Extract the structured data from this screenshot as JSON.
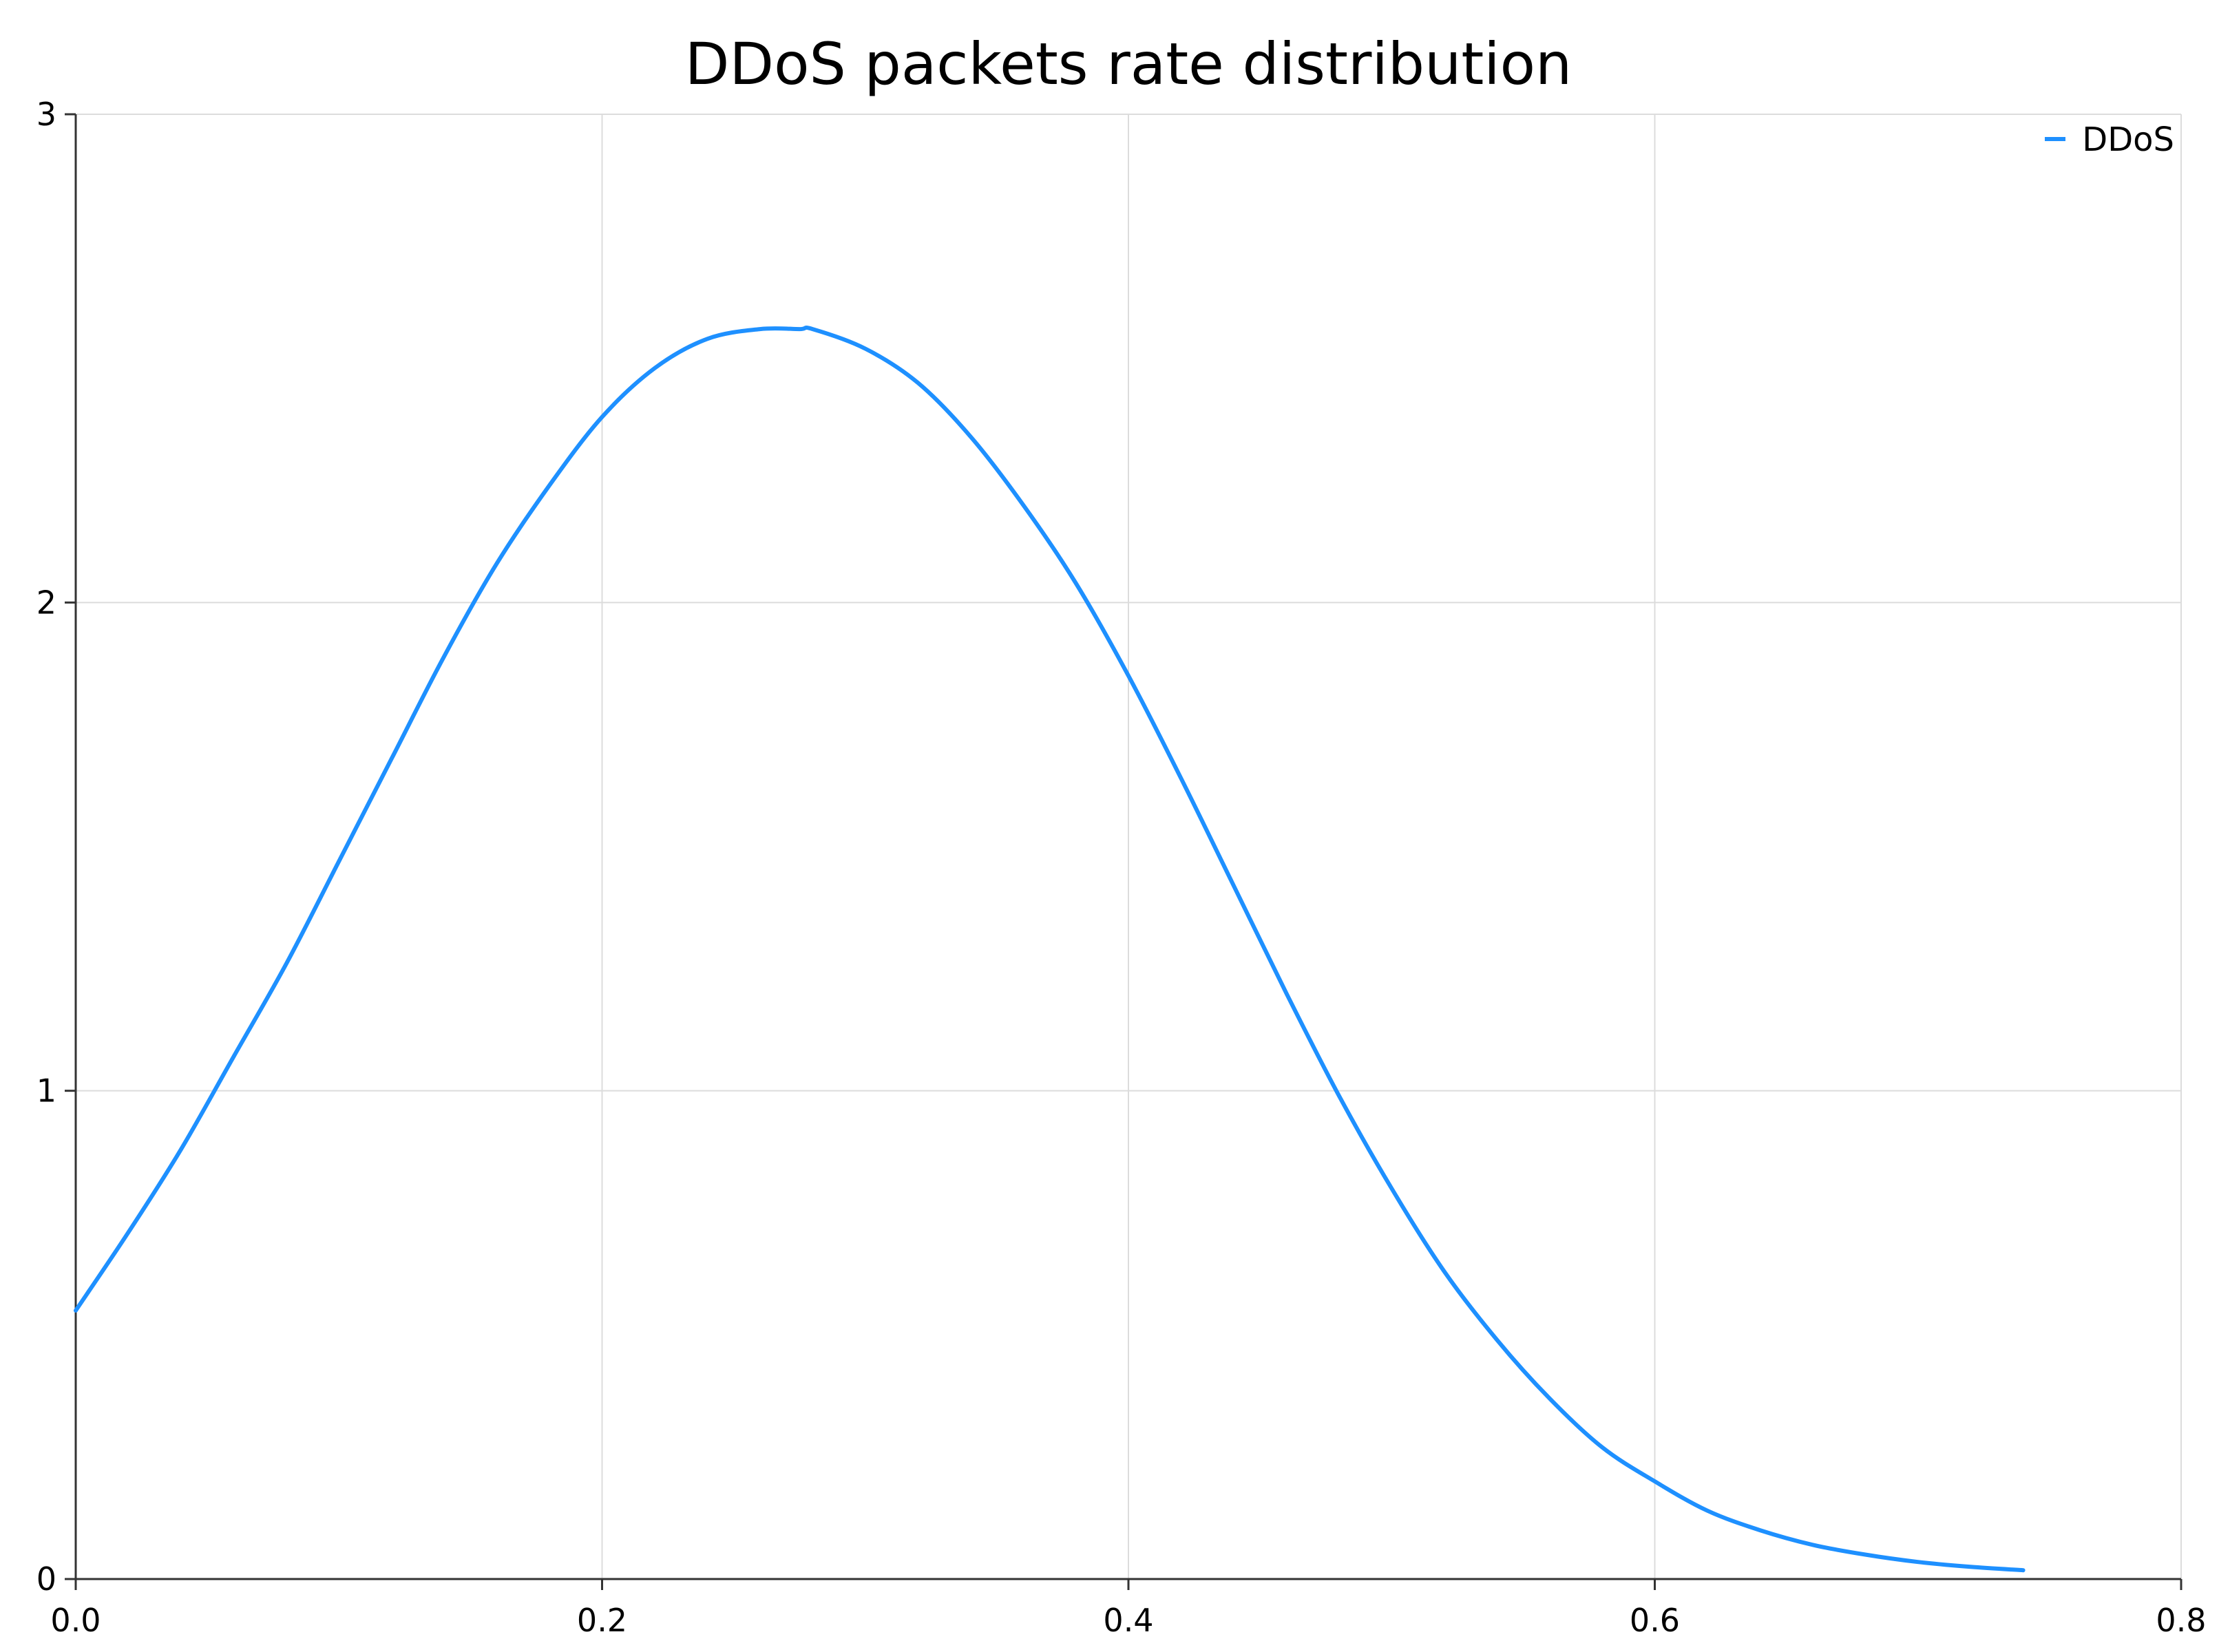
{
  "chart_data": {
    "type": "line",
    "title": "DDoS packets rate distribution",
    "xlabel": "",
    "ylabel": "",
    "xlim": [
      0,
      0.8
    ],
    "ylim": [
      0,
      3
    ],
    "x_ticks": [
      "0.0",
      "0.2",
      "0.4",
      "0.6",
      "0.8"
    ],
    "y_ticks": [
      "0",
      "1",
      "2",
      "3"
    ],
    "grid": true,
    "legend_position": "top-right",
    "series": [
      {
        "name": "DDoS",
        "color": "#1e90ff",
        "x": [
          0.0,
          0.02,
          0.04,
          0.06,
          0.08,
          0.1,
          0.12,
          0.14,
          0.16,
          0.18,
          0.2,
          0.22,
          0.24,
          0.26,
          0.275,
          0.28,
          0.3,
          0.32,
          0.34,
          0.36,
          0.38,
          0.4,
          0.42,
          0.44,
          0.46,
          0.48,
          0.5,
          0.52,
          0.54,
          0.56,
          0.58,
          0.6,
          0.62,
          0.64,
          0.66,
          0.68,
          0.7,
          0.72,
          0.74
        ],
        "y": [
          0.55,
          0.71,
          0.88,
          1.07,
          1.26,
          1.47,
          1.68,
          1.89,
          2.08,
          2.24,
          2.38,
          2.48,
          2.54,
          2.56,
          2.56,
          2.56,
          2.52,
          2.45,
          2.34,
          2.2,
          2.04,
          1.85,
          1.64,
          1.42,
          1.2,
          0.99,
          0.8,
          0.63,
          0.49,
          0.37,
          0.27,
          0.2,
          0.14,
          0.1,
          0.07,
          0.05,
          0.035,
          0.025,
          0.018
        ]
      }
    ]
  }
}
